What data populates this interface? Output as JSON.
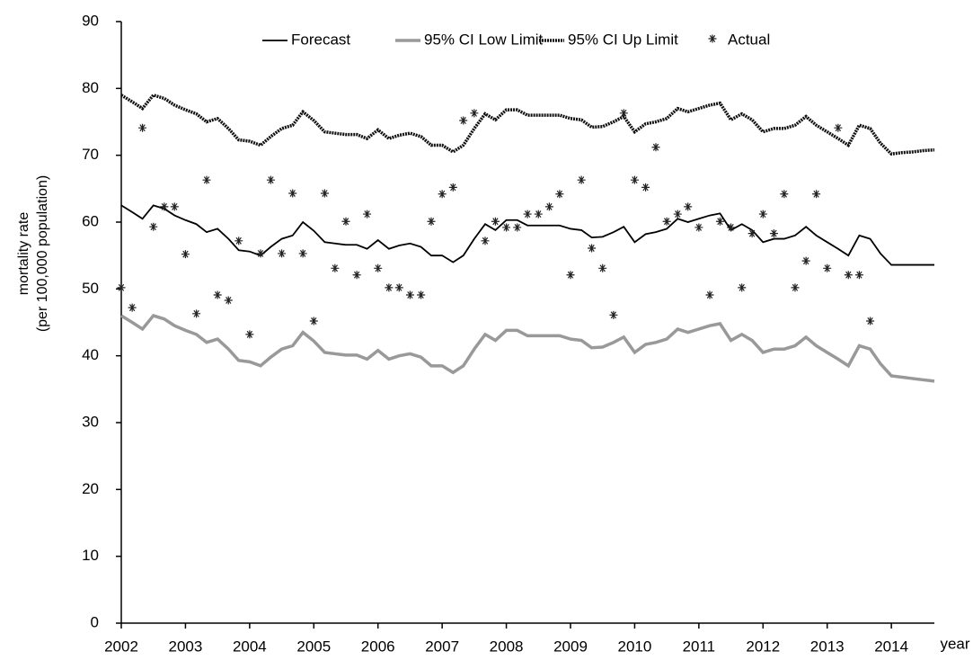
{
  "chart_data": {
    "type": "line",
    "ylabel": [
      "mortality rate",
      "(per 100,000 population)"
    ],
    "xlabel": "year",
    "x": [
      2002,
      2002.17,
      2002.33,
      2002.5,
      2002.67,
      2002.83,
      2003,
      2003.17,
      2003.33,
      2003.5,
      2003.67,
      2003.83,
      2004,
      2004.17,
      2004.33,
      2004.5,
      2004.67,
      2004.83,
      2005,
      2005.17,
      2005.33,
      2005.5,
      2005.67,
      2005.83,
      2006,
      2006.17,
      2006.33,
      2006.5,
      2006.67,
      2006.83,
      2007,
      2007.17,
      2007.33,
      2007.5,
      2007.67,
      2007.83,
      2008,
      2008.17,
      2008.33,
      2008.5,
      2008.67,
      2008.83,
      2009,
      2009.17,
      2009.33,
      2009.5,
      2009.67,
      2009.83,
      2010,
      2010.17,
      2010.33,
      2010.5,
      2010.67,
      2010.83,
      2011,
      2011.17,
      2011.33,
      2011.5,
      2011.67,
      2011.83,
      2012,
      2012.17,
      2012.33,
      2012.5,
      2012.67,
      2012.83,
      2013,
      2013.17,
      2013.33,
      2013.5,
      2013.67,
      2013.83,
      2014,
      2014.17,
      2014.33,
      2014.5,
      2014.67
    ],
    "xlim": [
      2002,
      2014.67
    ],
    "xticks": [
      2002,
      2003,
      2004,
      2005,
      2006,
      2007,
      2008,
      2009,
      2010,
      2011,
      2012,
      2013,
      2014
    ],
    "ylim": [
      0,
      90
    ],
    "yticks": [
      0,
      10,
      20,
      30,
      40,
      50,
      60,
      70,
      80,
      90
    ],
    "grid": false,
    "legend": "top",
    "series": [
      {
        "name": "Forecast",
        "color": "#000000",
        "line_style": "solid",
        "values": [
          62.5,
          61.5,
          60.5,
          62.5,
          62,
          61,
          60.3,
          59.7,
          58.5,
          59,
          57.5,
          55.8,
          55.6,
          55,
          56.3,
          57.5,
          58,
          60,
          58.7,
          57,
          56.8,
          56.6,
          56.6,
          56,
          57.3,
          56,
          56.5,
          56.8,
          56.3,
          55,
          55,
          54,
          55,
          57.5,
          59.7,
          58.8,
          60.3,
          60.3,
          59.5,
          59.5,
          59.5,
          59.5,
          59,
          58.8,
          57.7,
          57.8,
          58.5,
          59.3,
          57,
          58.2,
          58.5,
          59,
          60.5,
          60,
          60.5,
          61,
          61.3,
          58.8,
          59.7,
          58.8,
          57,
          57.5,
          57.5,
          58,
          59.3,
          58,
          57,
          56,
          55,
          58,
          57.5,
          55.3,
          53.6,
          53.6,
          53.6,
          53.6,
          53.6
        ]
      },
      {
        "name": "95% CI Low Limit",
        "color": "#999999",
        "line_style": "thick",
        "values": [
          46,
          45,
          44,
          46,
          45.5,
          44.5,
          43.8,
          43.2,
          42,
          42.5,
          41,
          39.3,
          39.1,
          38.5,
          39.8,
          41,
          41.5,
          43.5,
          42.2,
          40.5,
          40.3,
          40.1,
          40.1,
          39.5,
          40.8,
          39.5,
          40,
          40.3,
          39.8,
          38.5,
          38.5,
          37.5,
          38.5,
          41,
          43.2,
          42.3,
          43.8,
          43.8,
          43,
          43,
          43,
          43,
          42.5,
          42.3,
          41.2,
          41.3,
          42,
          42.8,
          40.5,
          41.7,
          42,
          42.5,
          44,
          43.5,
          44,
          44.5,
          44.8,
          42.3,
          43.2,
          42.3,
          40.5,
          41,
          41,
          41.5,
          42.8,
          41.5,
          40.5,
          39.5,
          38.5,
          41.5,
          41,
          38.8,
          37,
          36.8,
          36.6,
          36.4,
          36.2
        ]
      },
      {
        "name": "95% CI Up Limit",
        "color": "#111111",
        "line_style": "dotted",
        "values": [
          79,
          78,
          77,
          79,
          78.5,
          77.5,
          76.8,
          76.2,
          75,
          75.5,
          74,
          72.3,
          72.1,
          71.5,
          72.8,
          74,
          74.5,
          76.5,
          75.2,
          73.5,
          73.3,
          73.1,
          73.1,
          72.5,
          73.8,
          72.5,
          73,
          73.3,
          72.8,
          71.5,
          71.5,
          70.5,
          71.5,
          74,
          76.2,
          75.3,
          76.8,
          76.8,
          76,
          76,
          76,
          76,
          75.5,
          75.3,
          74.2,
          74.3,
          75,
          75.8,
          73.5,
          74.7,
          75,
          75.5,
          77,
          76.5,
          77,
          77.5,
          77.8,
          75.3,
          76.2,
          75.3,
          73.5,
          74,
          74,
          74.5,
          75.8,
          74.5,
          73.5,
          72.5,
          71.5,
          74.5,
          74,
          71.8,
          70.2,
          70.4,
          70.5,
          70.7,
          70.8
        ]
      },
      {
        "name": "Actual",
        "color": "#222222",
        "line_style": "none",
        "marker": "asterisk",
        "values": [
          50.2,
          47.2,
          74.1,
          59.3,
          62.3,
          62.3,
          55.2,
          46.3,
          66.3,
          49.1,
          48.3,
          57.2,
          43.2,
          55.3,
          66.3,
          55.3,
          64.3,
          55.3,
          45.2,
          64.3,
          53.1,
          60.1,
          52.1,
          61.2,
          53.1,
          50.2,
          50.2,
          49.1,
          49.1,
          60.1,
          64.2,
          65.2,
          75.2,
          76.3,
          57.2,
          60.1,
          59.2,
          59.2,
          61.2,
          61.2,
          62.3,
          64.2,
          52.1,
          66.3,
          56.1,
          53.1,
          46.1,
          76.3,
          66.3,
          65.2,
          71.2,
          60.1,
          61.2,
          62.3,
          59.2,
          49.1,
          60.1,
          59.2,
          50.2,
          58.3,
          61.2,
          58.3,
          64.2,
          50.2,
          54.2,
          64.2,
          53.1,
          74.1,
          52.1,
          52.1,
          45.2,
          null,
          null,
          null,
          null,
          null,
          null
        ]
      }
    ]
  }
}
